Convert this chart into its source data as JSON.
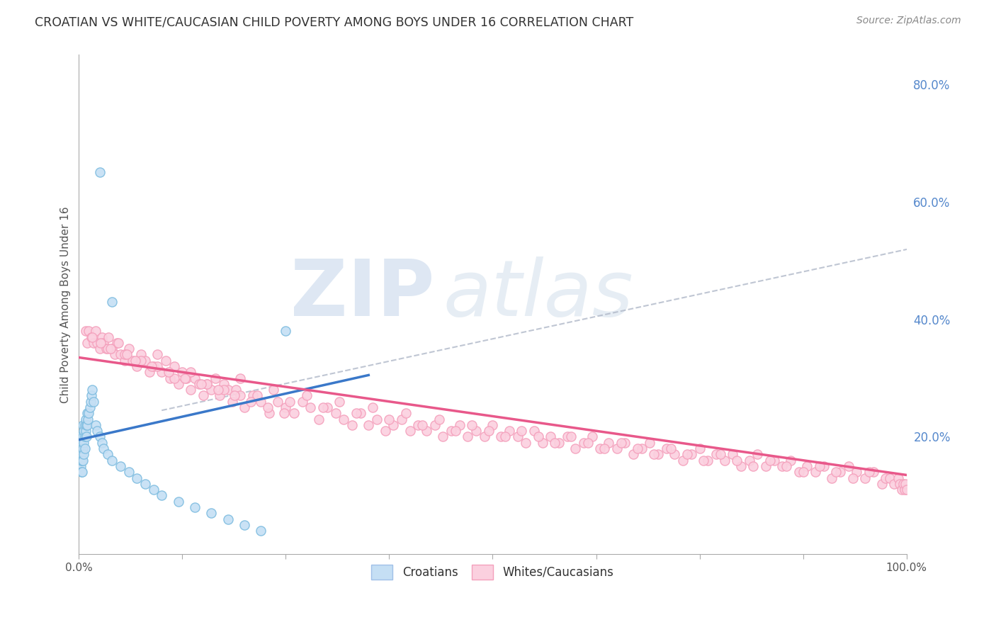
{
  "title": "CROATIAN VS WHITE/CAUCASIAN CHILD POVERTY AMONG BOYS UNDER 16 CORRELATION CHART",
  "source": "Source: ZipAtlas.com",
  "ylabel": "Child Poverty Among Boys Under 16",
  "xlim": [
    0,
    1.0
  ],
  "ylim": [
    0,
    0.85
  ],
  "x_ticks": [
    0.0,
    0.125,
    0.25,
    0.375,
    0.5,
    0.625,
    0.75,
    0.875,
    1.0
  ],
  "x_tick_labels": [
    "0.0%",
    "",
    "",
    "",
    "",
    "",
    "",
    "",
    "100.0%"
  ],
  "y_tick_labels_right": [
    "20.0%",
    "40.0%",
    "60.0%",
    "80.0%"
  ],
  "y_tick_positions_right": [
    0.2,
    0.4,
    0.6,
    0.8
  ],
  "croatian_color": "#7fbde0",
  "white_color": "#f4a0bc",
  "croatian_fill_color": "#c5dff4",
  "white_fill_color": "#fbd0df",
  "croatian_line_color": "#3a78c9",
  "white_line_color": "#e8588a",
  "trend_line_color": "#b0b8c8",
  "background_color": "#ffffff",
  "grid_color": "#d8dce8",
  "legend_blue_fill": "#c5dff4",
  "legend_pink_fill": "#fbd0df",
  "legend_blue_edge": "#a0c0e8",
  "legend_pink_edge": "#f4a0bc",
  "croatians_scatter_x": [
    0.001,
    0.001,
    0.002,
    0.002,
    0.002,
    0.003,
    0.003,
    0.003,
    0.003,
    0.004,
    0.004,
    0.004,
    0.005,
    0.005,
    0.005,
    0.005,
    0.006,
    0.006,
    0.006,
    0.007,
    0.007,
    0.007,
    0.008,
    0.008,
    0.009,
    0.009,
    0.01,
    0.01,
    0.011,
    0.012,
    0.013,
    0.014,
    0.015,
    0.016,
    0.018,
    0.02,
    0.022,
    0.025,
    0.028,
    0.03,
    0.035,
    0.04,
    0.05,
    0.06,
    0.07,
    0.08,
    0.09,
    0.1,
    0.12,
    0.14,
    0.16,
    0.18,
    0.2,
    0.22,
    0.025,
    0.04,
    0.25
  ],
  "croatians_scatter_y": [
    0.17,
    0.16,
    0.2,
    0.18,
    0.15,
    0.19,
    0.17,
    0.16,
    0.14,
    0.18,
    0.16,
    0.14,
    0.22,
    0.2,
    0.18,
    0.16,
    0.21,
    0.19,
    0.17,
    0.22,
    0.2,
    0.18,
    0.23,
    0.21,
    0.22,
    0.2,
    0.24,
    0.22,
    0.23,
    0.24,
    0.25,
    0.26,
    0.27,
    0.28,
    0.26,
    0.22,
    0.21,
    0.2,
    0.19,
    0.18,
    0.17,
    0.16,
    0.15,
    0.14,
    0.13,
    0.12,
    0.11,
    0.1,
    0.09,
    0.08,
    0.07,
    0.06,
    0.05,
    0.04,
    0.65,
    0.43,
    0.38
  ],
  "whites_scatter_x": [
    0.008,
    0.01,
    0.012,
    0.015,
    0.018,
    0.02,
    0.022,
    0.025,
    0.028,
    0.03,
    0.033,
    0.036,
    0.04,
    0.043,
    0.046,
    0.05,
    0.055,
    0.06,
    0.065,
    0.07,
    0.075,
    0.08,
    0.085,
    0.09,
    0.095,
    0.1,
    0.105,
    0.11,
    0.115,
    0.12,
    0.125,
    0.13,
    0.135,
    0.14,
    0.145,
    0.15,
    0.155,
    0.16,
    0.165,
    0.17,
    0.175,
    0.18,
    0.185,
    0.19,
    0.195,
    0.2,
    0.21,
    0.22,
    0.23,
    0.24,
    0.25,
    0.26,
    0.27,
    0.28,
    0.29,
    0.3,
    0.31,
    0.32,
    0.33,
    0.34,
    0.35,
    0.36,
    0.37,
    0.38,
    0.39,
    0.4,
    0.41,
    0.42,
    0.43,
    0.44,
    0.45,
    0.46,
    0.47,
    0.48,
    0.49,
    0.5,
    0.51,
    0.52,
    0.53,
    0.54,
    0.55,
    0.56,
    0.57,
    0.58,
    0.59,
    0.6,
    0.61,
    0.62,
    0.63,
    0.64,
    0.65,
    0.66,
    0.67,
    0.68,
    0.69,
    0.7,
    0.71,
    0.72,
    0.73,
    0.74,
    0.75,
    0.76,
    0.77,
    0.78,
    0.79,
    0.8,
    0.81,
    0.82,
    0.83,
    0.84,
    0.85,
    0.86,
    0.87,
    0.88,
    0.89,
    0.9,
    0.91,
    0.92,
    0.93,
    0.94,
    0.95,
    0.96,
    0.97,
    0.975,
    0.98,
    0.985,
    0.99,
    0.992,
    0.994,
    0.996,
    0.998,
    0.999,
    1.0,
    0.035,
    0.055,
    0.075,
    0.095,
    0.115,
    0.135,
    0.155,
    0.175,
    0.195,
    0.215,
    0.235,
    0.255,
    0.275,
    0.295,
    0.315,
    0.335,
    0.355,
    0.375,
    0.395,
    0.415,
    0.435,
    0.455,
    0.475,
    0.495,
    0.515,
    0.535,
    0.555,
    0.575,
    0.595,
    0.615,
    0.635,
    0.655,
    0.675,
    0.695,
    0.715,
    0.735,
    0.755,
    0.775,
    0.795,
    0.815,
    0.835,
    0.855,
    0.875,
    0.895,
    0.915,
    0.935,
    0.955,
    0.016,
    0.026,
    0.038,
    0.048,
    0.058,
    0.068,
    0.088,
    0.108,
    0.128,
    0.148,
    0.168,
    0.188,
    0.208,
    0.228,
    0.248
  ],
  "whites_scatter_y": [
    0.38,
    0.36,
    0.38,
    0.37,
    0.36,
    0.38,
    0.36,
    0.35,
    0.37,
    0.36,
    0.35,
    0.37,
    0.35,
    0.34,
    0.36,
    0.34,
    0.33,
    0.35,
    0.33,
    0.32,
    0.34,
    0.33,
    0.31,
    0.32,
    0.34,
    0.31,
    0.33,
    0.3,
    0.32,
    0.29,
    0.31,
    0.3,
    0.28,
    0.3,
    0.29,
    0.27,
    0.29,
    0.28,
    0.3,
    0.27,
    0.29,
    0.28,
    0.26,
    0.28,
    0.27,
    0.25,
    0.27,
    0.26,
    0.24,
    0.26,
    0.25,
    0.24,
    0.26,
    0.25,
    0.23,
    0.25,
    0.24,
    0.23,
    0.22,
    0.24,
    0.22,
    0.23,
    0.21,
    0.22,
    0.23,
    0.21,
    0.22,
    0.21,
    0.22,
    0.2,
    0.21,
    0.22,
    0.2,
    0.21,
    0.2,
    0.22,
    0.2,
    0.21,
    0.2,
    0.19,
    0.21,
    0.19,
    0.2,
    0.19,
    0.2,
    0.18,
    0.19,
    0.2,
    0.18,
    0.19,
    0.18,
    0.19,
    0.17,
    0.18,
    0.19,
    0.17,
    0.18,
    0.17,
    0.16,
    0.17,
    0.18,
    0.16,
    0.17,
    0.16,
    0.17,
    0.15,
    0.16,
    0.17,
    0.15,
    0.16,
    0.15,
    0.16,
    0.14,
    0.15,
    0.14,
    0.15,
    0.13,
    0.14,
    0.15,
    0.14,
    0.13,
    0.14,
    0.12,
    0.13,
    0.13,
    0.12,
    0.13,
    0.12,
    0.11,
    0.12,
    0.11,
    0.12,
    0.11,
    0.35,
    0.34,
    0.33,
    0.32,
    0.3,
    0.31,
    0.29,
    0.28,
    0.3,
    0.27,
    0.28,
    0.26,
    0.27,
    0.25,
    0.26,
    0.24,
    0.25,
    0.23,
    0.24,
    0.22,
    0.23,
    0.21,
    0.22,
    0.21,
    0.2,
    0.21,
    0.2,
    0.19,
    0.2,
    0.19,
    0.18,
    0.19,
    0.18,
    0.17,
    0.18,
    0.17,
    0.16,
    0.17,
    0.16,
    0.15,
    0.16,
    0.15,
    0.14,
    0.15,
    0.14,
    0.13,
    0.14,
    0.37,
    0.36,
    0.35,
    0.36,
    0.34,
    0.33,
    0.32,
    0.31,
    0.3,
    0.29,
    0.28,
    0.27,
    0.26,
    0.25,
    0.24
  ],
  "blue_line_x0": 0.0,
  "blue_line_y0": 0.195,
  "blue_line_x1": 0.35,
  "blue_line_y1": 0.305,
  "pink_line_x0": 0.0,
  "pink_line_y0": 0.335,
  "pink_line_x1": 1.0,
  "pink_line_y1": 0.135,
  "dash_line_x0": 0.1,
  "dash_line_y0": 0.245,
  "dash_line_x1": 1.02,
  "dash_line_y1": 0.525
}
